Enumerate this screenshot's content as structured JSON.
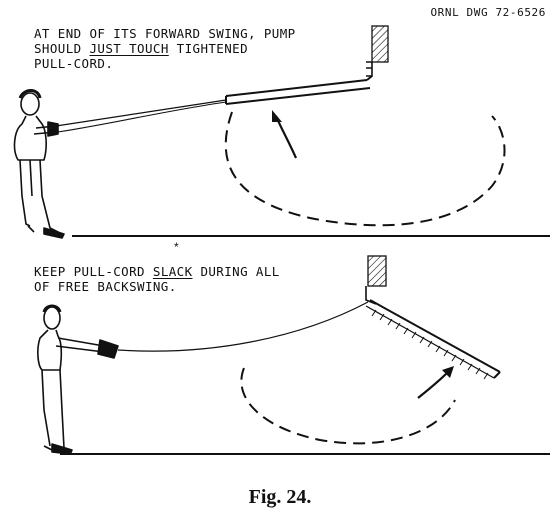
{
  "drawing_number": "ORNL DWG 72-6526",
  "top_panel": {
    "note_line1": "AT END OF ITS FORWARD SWING, PUMP",
    "note_line2_pre": "SHOULD ",
    "note_line2_emph": "JUST TOUCH",
    "note_line2_post": " TIGHTENED",
    "note_line3": "PULL-CORD."
  },
  "bottom_panel": {
    "note_line1_pre": "KEEP PULL-CORD ",
    "note_line1_emph": "SLACK",
    "note_line1_post": " DURING ALL",
    "note_line2": "OF FREE BACKSWING."
  },
  "separator_mark": "*",
  "caption": "Fig. 24."
}
